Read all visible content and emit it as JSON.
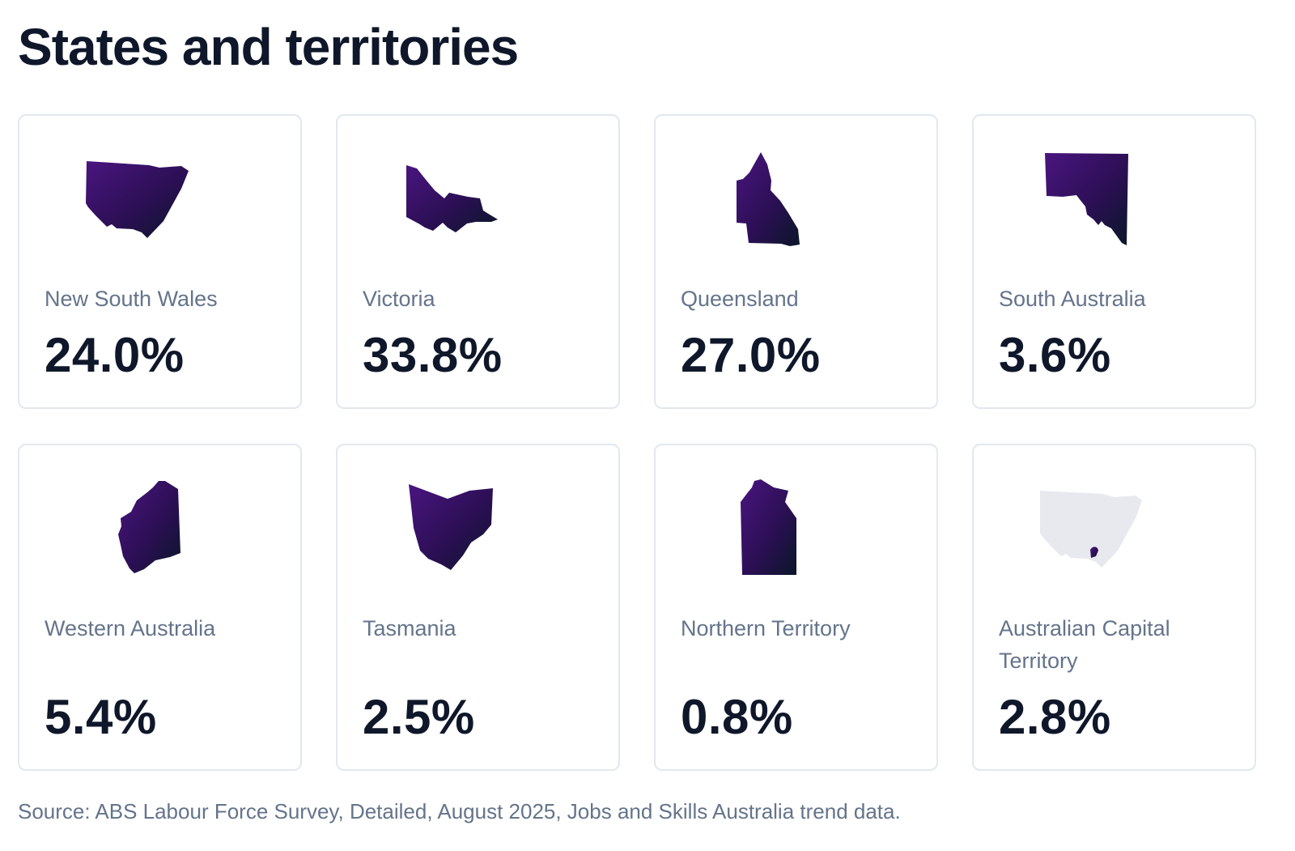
{
  "page": {
    "title": "States and territories",
    "source": "Source: ABS Labour Force Survey, Detailed, August 2025, Jobs and Skills Australia trend data."
  },
  "colors": {
    "map_gradient_start": "#4a1580",
    "map_gradient_end": "#0a1628",
    "map_inactive": "#e8e9ef",
    "border": "#e2e8f0",
    "label": "#64748b",
    "value": "#0f172a"
  },
  "cards": [
    {
      "name": "New South Wales",
      "value": "24.0%",
      "icon": "nsw-map-icon"
    },
    {
      "name": "Victoria",
      "value": "33.8%",
      "icon": "vic-map-icon"
    },
    {
      "name": "Queensland",
      "value": "27.0%",
      "icon": "qld-map-icon"
    },
    {
      "name": "South Australia",
      "value": "3.6%",
      "icon": "sa-map-icon"
    },
    {
      "name": "Western Australia",
      "value": "5.4%",
      "icon": "wa-map-icon"
    },
    {
      "name": "Tasmania",
      "value": "2.5%",
      "icon": "tas-map-icon"
    },
    {
      "name": "Northern Territory",
      "value": "0.8%",
      "icon": "nt-map-icon"
    },
    {
      "name": "Australian Capital Territory",
      "value": "2.8%",
      "icon": "act-map-icon"
    }
  ]
}
